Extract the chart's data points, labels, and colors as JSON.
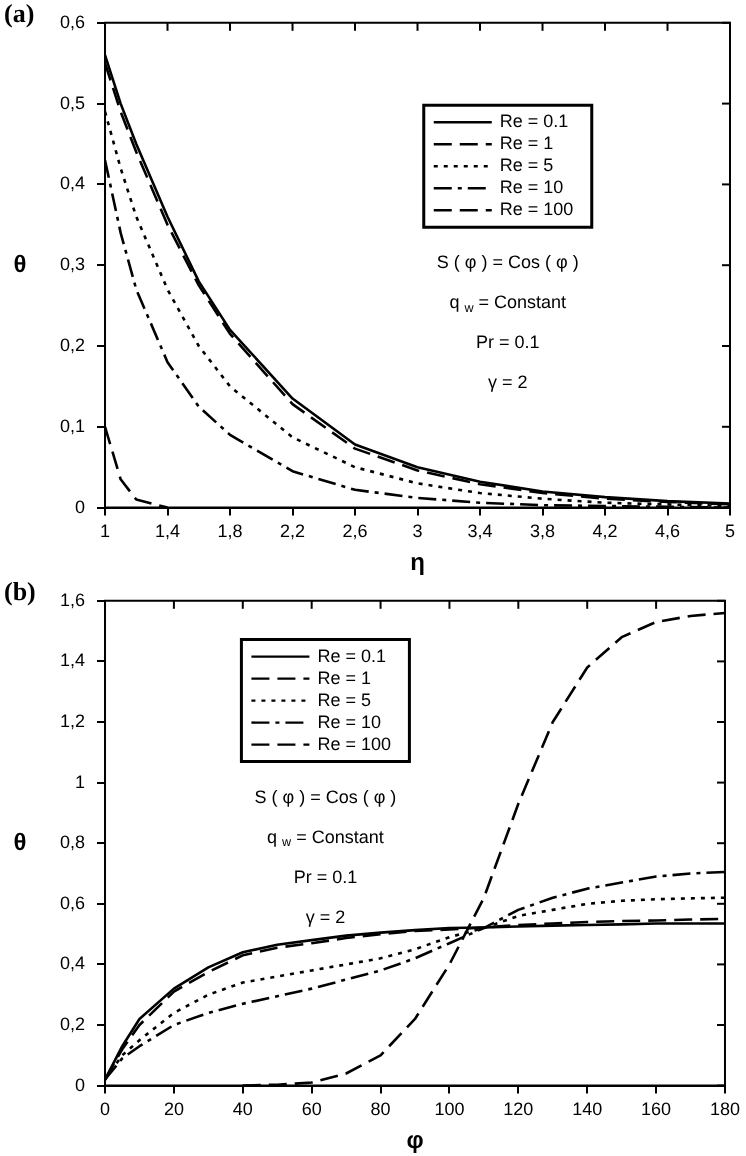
{
  "chart_data": [
    {
      "type": "line",
      "title": "(a)",
      "xlabel": "η",
      "ylabel": "θ",
      "legend": "top right",
      "grid": false,
      "x": [
        1,
        1.1,
        1.2,
        1.4,
        1.6,
        1.8,
        2.2,
        2.6,
        3,
        3.4,
        3.8,
        4.2,
        4.6,
        5
      ],
      "xlim": [
        1,
        5
      ],
      "xticks": [
        1,
        {
          "value": 1.4,
          "label": "1,4"
        },
        {
          "value": 1.8,
          "label": "1,8"
        },
        {
          "value": 2.2,
          "label": "2,2"
        },
        {
          "value": 2.6,
          "label": "2,6"
        },
        3,
        {
          "value": 3.4,
          "label": "3,4"
        },
        {
          "value": 3.8,
          "label": "3,8"
        },
        {
          "value": 4.2,
          "label": "4,2"
        },
        {
          "value": 4.6,
          "label": "4,6"
        },
        5
      ],
      "ylim": [
        0,
        0.6
      ],
      "yticks": [
        {
          "value": 0,
          "label": "0"
        },
        {
          "value": 0.1,
          "label": "0,1"
        },
        {
          "value": 0.2,
          "label": "0,2"
        },
        {
          "value": 0.3,
          "label": "0,3"
        },
        {
          "value": 0.4,
          "label": "0,4"
        },
        {
          "value": 0.5,
          "label": "0,5"
        },
        {
          "value": 0.6,
          "label": "0,6"
        }
      ],
      "annotations": [
        "S ( φ ) = Cos ( φ )",
        "q $_{w}$ = Constant",
        "Pr = 0.1",
        "γ = 2"
      ],
      "series": [
        {
          "name": "Re = 0.1",
          "color": "#000000",
          "line_style": "solid",
          "values": [
            0.56,
            0.5,
            0.45,
            0.36,
            0.28,
            0.22,
            0.135,
            0.078,
            0.05,
            0.032,
            0.02,
            0.013,
            0.008,
            0.005
          ]
        },
        {
          "name": "Re = 1",
          "color": "#000000",
          "line_style": "dashed",
          "values": [
            0.55,
            0.49,
            0.44,
            0.35,
            0.275,
            0.215,
            0.128,
            0.073,
            0.046,
            0.029,
            0.018,
            0.011,
            0.007,
            0.004
          ]
        },
        {
          "name": "Re = 5",
          "color": "#000000",
          "line_style": "dotted",
          "values": [
            0.49,
            0.42,
            0.36,
            0.27,
            0.2,
            0.15,
            0.087,
            0.05,
            0.03,
            0.018,
            0.011,
            0.006,
            0.004,
            0.002
          ]
        },
        {
          "name": "Re = 10",
          "color": "#000000",
          "line_style": "dashdot",
          "values": [
            0.43,
            0.34,
            0.27,
            0.18,
            0.125,
            0.09,
            0.045,
            0.022,
            0.012,
            0.006,
            0.003,
            0.002,
            0.001,
            0
          ]
        },
        {
          "name": "Re = 100",
          "color": "#000000",
          "line_style": "dashed",
          "values": [
            0.1,
            0.035,
            0.01,
            0,
            null,
            null,
            null,
            null,
            null,
            null,
            null,
            null,
            null,
            null
          ]
        }
      ]
    },
    {
      "type": "line",
      "title": "(b)",
      "xlabel": "φ",
      "ylabel": "θ",
      "legend": "top left",
      "grid": false,
      "x": [
        0,
        5,
        10,
        20,
        30,
        40,
        50,
        60,
        70,
        80,
        90,
        100,
        110,
        120,
        130,
        140,
        150,
        160,
        170,
        180
      ],
      "xlim": [
        0,
        180
      ],
      "xticks": [
        {
          "value": 0,
          "label": "0"
        },
        20,
        40,
        60,
        80,
        100,
        120,
        140,
        160,
        180
      ],
      "ylim": [
        0,
        1.6
      ],
      "yticks": [
        {
          "value": 0,
          "label": "0"
        },
        {
          "value": 0.2,
          "label": "0,2"
        },
        {
          "value": 0.4,
          "label": "0,4"
        },
        {
          "value": 0.6,
          "label": "0,6"
        },
        {
          "value": 0.8,
          "label": "0,8"
        },
        1,
        {
          "value": 1.2,
          "label": "1,2"
        },
        {
          "value": 1.4,
          "label": "1,4"
        },
        {
          "value": 1.6,
          "label": "1,6"
        }
      ],
      "annotations": [
        "S ( φ ) = Cos ( φ )",
        "q $_{w}$ = Constant",
        "Pr = 0.1",
        "γ = 2"
      ],
      "series": [
        {
          "name": "Re = 0.1",
          "color": "#000000",
          "line_style": "solid",
          "values": [
            0.02,
            0.13,
            0.22,
            0.32,
            0.39,
            0.44,
            0.465,
            0.48,
            0.495,
            0.505,
            0.513,
            0.52,
            0.522,
            0.525,
            0.528,
            0.53,
            0.532,
            0.535,
            0.535,
            0.535
          ]
        },
        {
          "name": "Re = 1",
          "color": "#000000",
          "line_style": "dashed",
          "values": [
            0.02,
            0.12,
            0.2,
            0.31,
            0.375,
            0.43,
            0.455,
            0.47,
            0.487,
            0.5,
            0.51,
            0.515,
            0.522,
            0.53,
            0.535,
            0.54,
            0.543,
            0.545,
            0.548,
            0.55
          ]
        },
        {
          "name": "Re = 5",
          "color": "#000000",
          "line_style": "dotted",
          "values": [
            0.02,
            0.1,
            0.15,
            0.24,
            0.3,
            0.34,
            0.36,
            0.38,
            0.4,
            0.42,
            0.45,
            0.49,
            0.52,
            0.56,
            0.58,
            0.6,
            0.61,
            0.615,
            0.618,
            0.62
          ]
        },
        {
          "name": "Re = 10",
          "color": "#000000",
          "line_style": "dashdot",
          "values": [
            0.02,
            0.09,
            0.13,
            0.2,
            0.24,
            0.27,
            0.295,
            0.32,
            0.35,
            0.38,
            0.42,
            0.47,
            0.52,
            0.58,
            0.62,
            0.65,
            0.67,
            0.69,
            0.7,
            0.705
          ]
        },
        {
          "name": "Re = 100",
          "color": "#000000",
          "line_style": "dashed",
          "values": [
            null,
            null,
            null,
            null,
            null,
            0,
            0.003,
            0.01,
            0.04,
            0.1,
            0.22,
            0.4,
            0.62,
            0.93,
            1.2,
            1.38,
            1.48,
            1.53,
            1.55,
            1.56
          ]
        }
      ]
    }
  ]
}
